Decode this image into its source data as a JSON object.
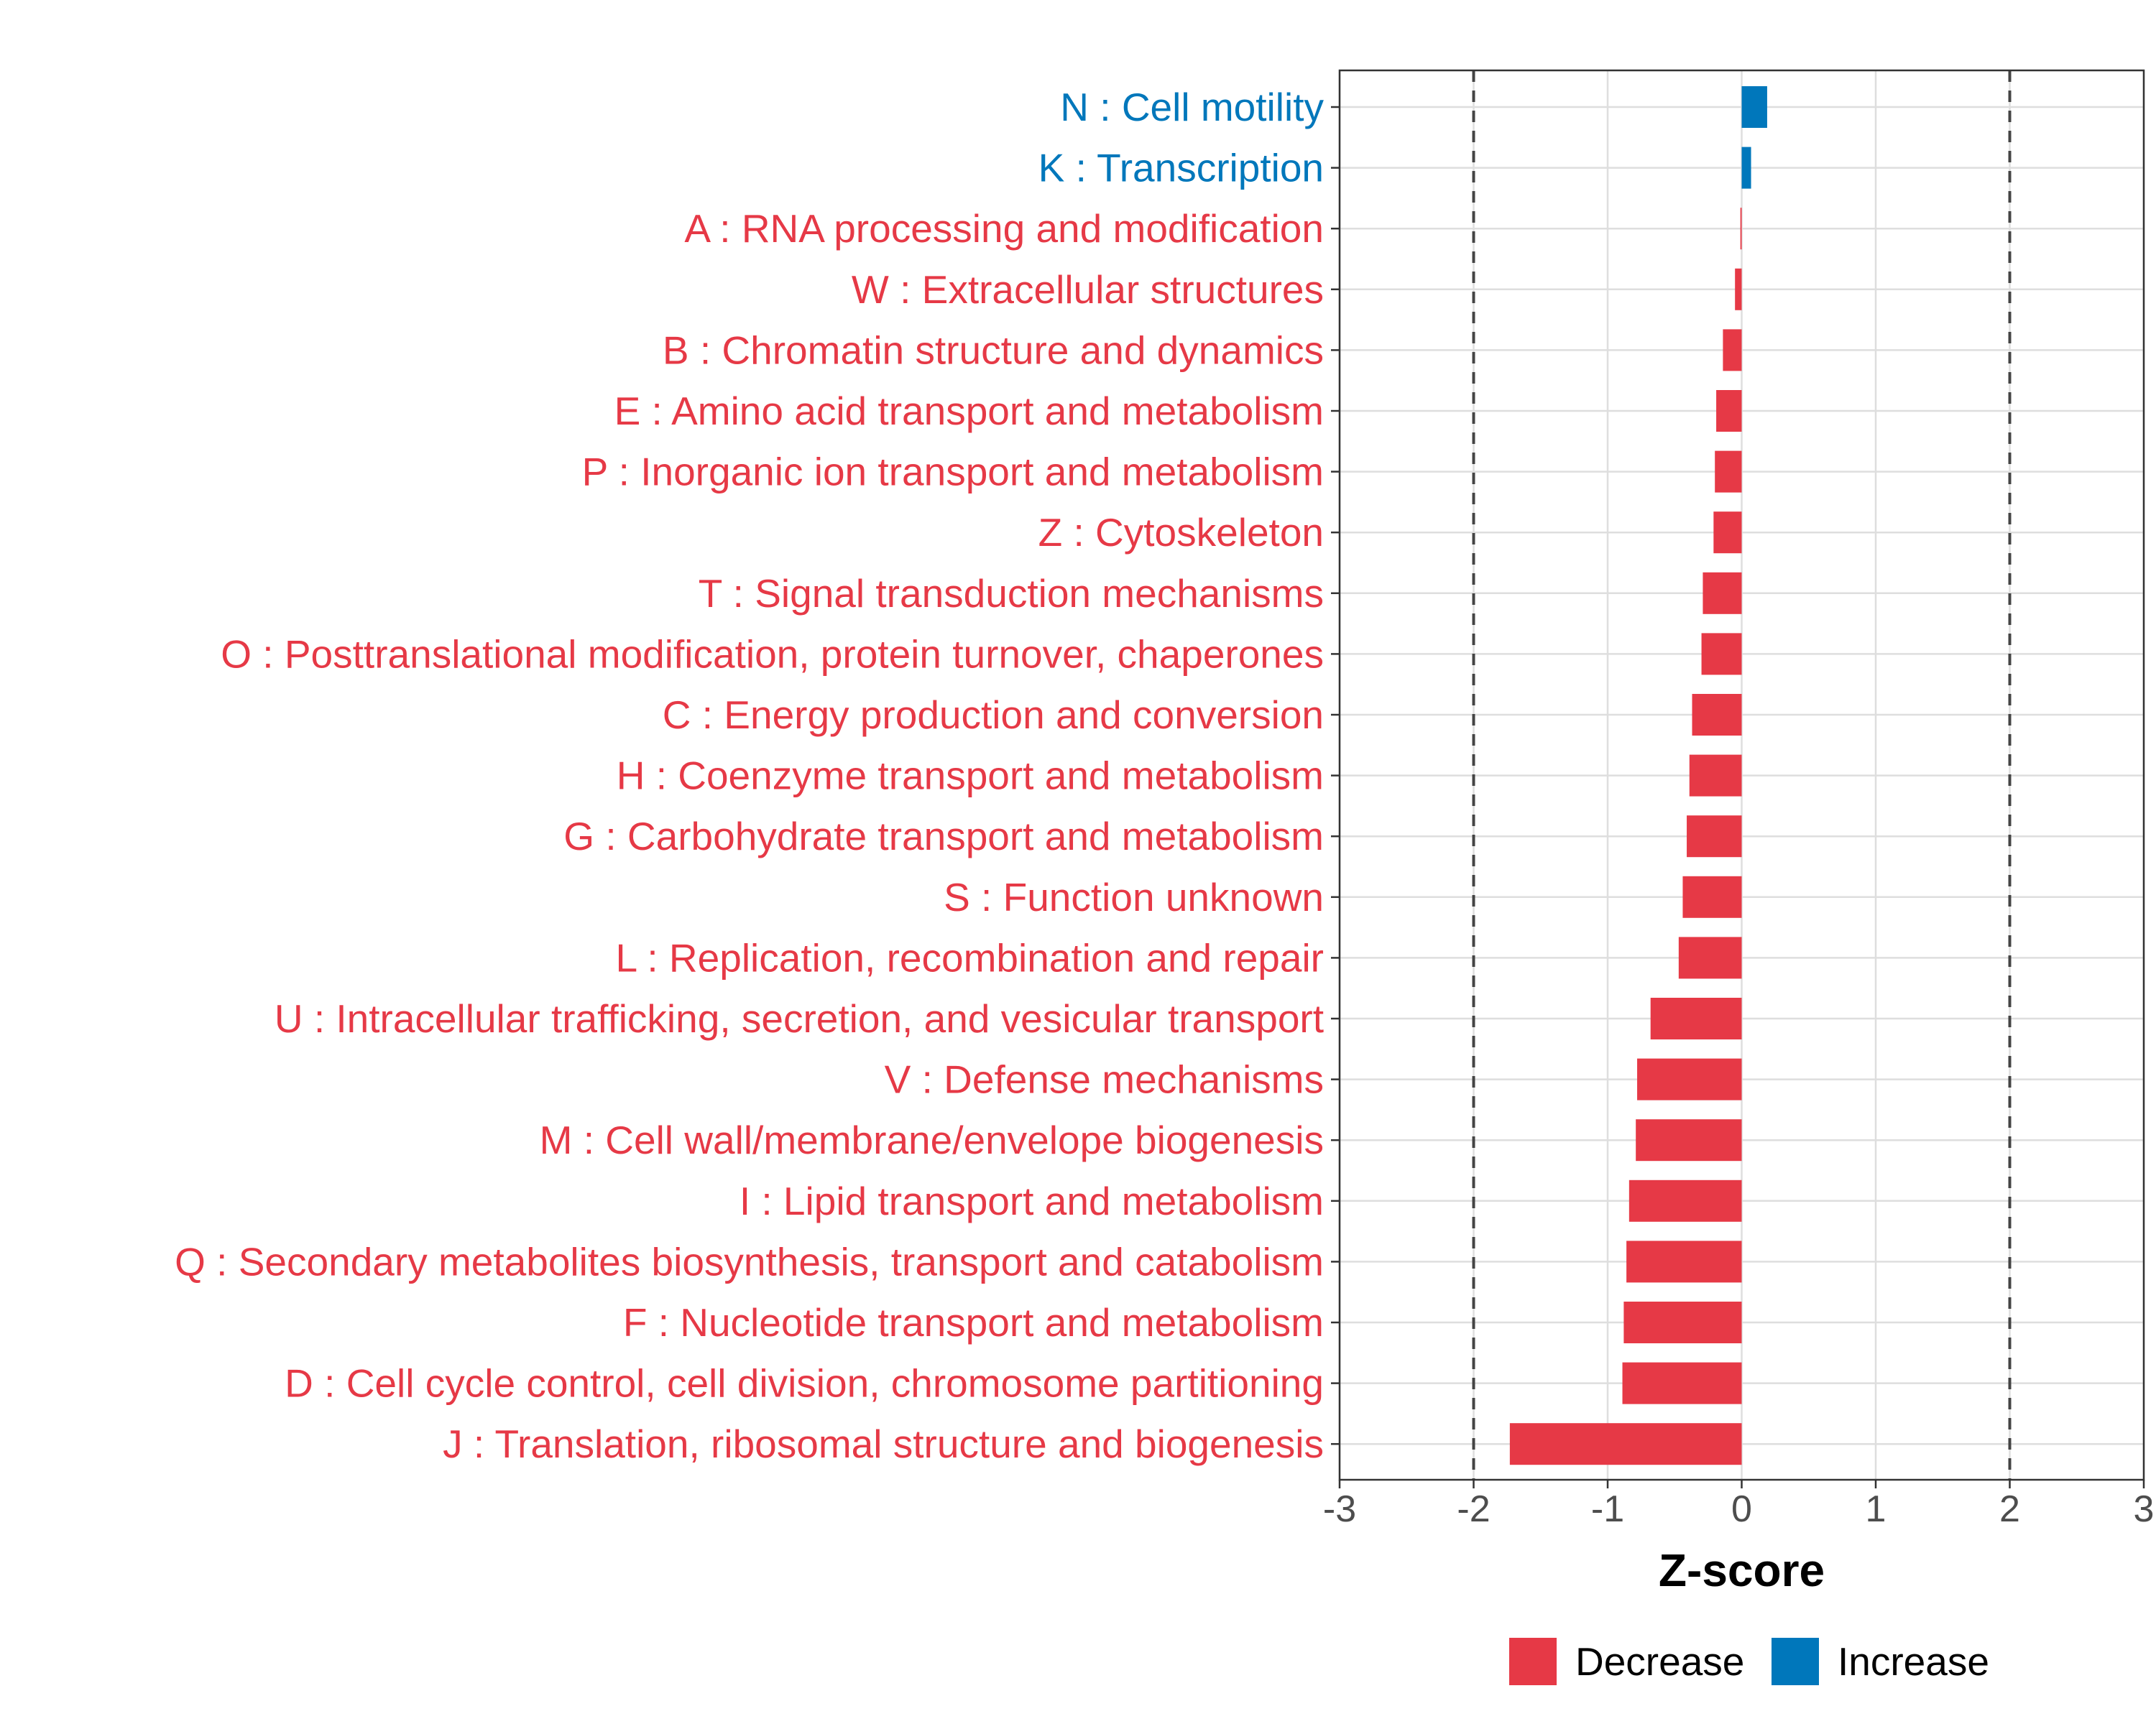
{
  "chart_data": {
    "type": "bar",
    "orientation": "horizontal",
    "xlabel": "Z-score",
    "ylabel": "",
    "xlim": [
      -3,
      3
    ],
    "xticks": [
      -3,
      -2,
      -1,
      0,
      1,
      2,
      3
    ],
    "reference_lines": [
      -2,
      2
    ],
    "grid": true,
    "legend": {
      "placement": "bottom",
      "entries": [
        {
          "label": "Decrease",
          "color": "#E63946"
        },
        {
          "label": "Increase",
          "color": "#0077BB"
        }
      ]
    },
    "categories": [
      "N : Cell motility",
      "K : Transcription",
      "A : RNA processing and modification",
      "W : Extracellular structures",
      "B : Chromatin structure and dynamics",
      "E : Amino acid transport and metabolism",
      "P : Inorganic ion transport and metabolism",
      "Z : Cytoskeleton",
      "T : Signal transduction mechanisms",
      "O : Posttranslational modification, protein turnover, chaperones",
      "C : Energy production and conversion",
      "H : Coenzyme transport and metabolism",
      "G : Carbohydrate transport and metabolism",
      "S : Function unknown",
      "L : Replication, recombination and repair",
      "U : Intracellular trafficking, secretion, and vesicular transport",
      "V : Defense mechanisms",
      "M : Cell wall/membrane/envelope biogenesis",
      "I : Lipid transport and metabolism",
      "Q : Secondary metabolites biosynthesis, transport and catabolism",
      "F : Nucleotide transport and metabolism",
      "D : Cell cycle control, cell division, chromosome partitioning",
      "J : Translation, ribosomal structure and biogenesis"
    ],
    "values": [
      0.19,
      0.07,
      -0.01,
      -0.05,
      -0.14,
      -0.19,
      -0.2,
      -0.21,
      -0.29,
      -0.3,
      -0.37,
      -0.39,
      -0.41,
      -0.44,
      -0.47,
      -0.68,
      -0.78,
      -0.79,
      -0.84,
      -0.86,
      -0.88,
      -0.89,
      -1.73
    ],
    "groups": [
      "Increase",
      "Increase",
      "Decrease",
      "Decrease",
      "Decrease",
      "Decrease",
      "Decrease",
      "Decrease",
      "Decrease",
      "Decrease",
      "Decrease",
      "Decrease",
      "Decrease",
      "Decrease",
      "Decrease",
      "Decrease",
      "Decrease",
      "Decrease",
      "Decrease",
      "Decrease",
      "Decrease",
      "Decrease",
      "Decrease"
    ]
  }
}
